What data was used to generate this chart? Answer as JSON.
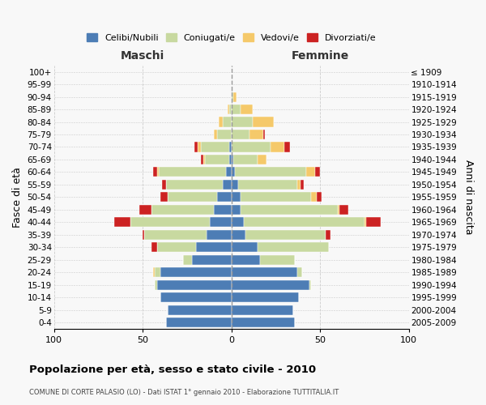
{
  "age_groups": [
    "0-4",
    "5-9",
    "10-14",
    "15-19",
    "20-24",
    "25-29",
    "30-34",
    "35-39",
    "40-44",
    "45-49",
    "50-54",
    "55-59",
    "60-64",
    "65-69",
    "70-74",
    "75-79",
    "80-84",
    "85-89",
    "90-94",
    "95-99",
    "100+"
  ],
  "birth_years": [
    "2005-2009",
    "2000-2004",
    "1995-1999",
    "1990-1994",
    "1985-1989",
    "1980-1984",
    "1975-1979",
    "1970-1974",
    "1965-1969",
    "1960-1964",
    "1955-1959",
    "1950-1954",
    "1945-1949",
    "1940-1944",
    "1935-1939",
    "1930-1934",
    "1925-1929",
    "1920-1924",
    "1915-1919",
    "1910-1914",
    "≤ 1909"
  ],
  "colors": {
    "celibe": "#4d7db5",
    "coniugato": "#c8d9a0",
    "vedovo": "#f5c96a",
    "divorziato": "#cc2222"
  },
  "maschi": {
    "celibe": [
      37,
      36,
      40,
      42,
      40,
      22,
      20,
      14,
      12,
      10,
      8,
      5,
      3,
      1,
      1,
      0,
      0,
      0,
      0,
      0,
      0
    ],
    "coniugato": [
      0,
      0,
      0,
      1,
      3,
      5,
      22,
      35,
      45,
      35,
      28,
      32,
      38,
      14,
      16,
      8,
      5,
      1,
      0,
      0,
      0
    ],
    "vedovo": [
      0,
      0,
      0,
      0,
      1,
      0,
      0,
      0,
      0,
      0,
      0,
      0,
      1,
      1,
      2,
      2,
      2,
      1,
      0,
      0,
      0
    ],
    "divorziato": [
      0,
      0,
      0,
      0,
      0,
      0,
      3,
      1,
      9,
      7,
      4,
      2,
      2,
      1,
      2,
      0,
      0,
      0,
      0,
      0,
      0
    ]
  },
  "femmine": {
    "nubile": [
      36,
      35,
      38,
      44,
      37,
      16,
      15,
      8,
      7,
      5,
      5,
      4,
      2,
      1,
      0,
      0,
      0,
      0,
      0,
      0,
      0
    ],
    "coniugata": [
      0,
      0,
      0,
      1,
      3,
      20,
      40,
      45,
      68,
      55,
      40,
      33,
      40,
      14,
      22,
      10,
      12,
      5,
      1,
      0,
      0
    ],
    "vedova": [
      0,
      0,
      0,
      0,
      0,
      0,
      0,
      0,
      1,
      1,
      3,
      2,
      5,
      5,
      8,
      8,
      12,
      7,
      2,
      0,
      0
    ],
    "divorziata": [
      0,
      0,
      0,
      0,
      0,
      0,
      0,
      3,
      8,
      5,
      3,
      2,
      3,
      0,
      3,
      1,
      0,
      0,
      0,
      0,
      0
    ]
  },
  "title": "Popolazione per età, sesso e stato civile - 2010",
  "subtitle": "COMUNE DI CORTE PALASIO (LO) - Dati ISTAT 1° gennaio 2010 - Elaborazione TUTTITALIA.IT",
  "header_left": "Maschi",
  "header_right": "Femmine",
  "ylabel_left": "Fasce di età",
  "ylabel_right": "Anni di nascita",
  "xlim": 100,
  "bg_color": "#f8f8f8",
  "grid_color": "#cccccc",
  "legend_labels": [
    "Celibi/Nubili",
    "Coniugati/e",
    "Vedovi/e",
    "Divorziati/e"
  ]
}
